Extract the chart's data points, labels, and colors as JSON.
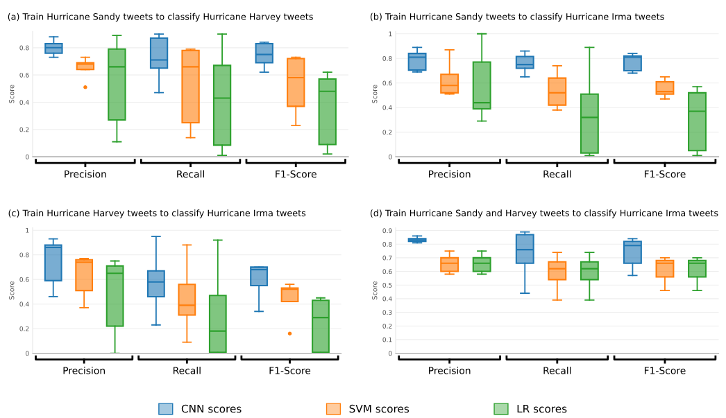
{
  "chart_data": [
    {
      "type": "box",
      "title": "(a) Train Hurricane Sandy tweets to classify Hurricane Harvey tweets",
      "ylabel": "Score",
      "categories": [
        "Precision",
        "Recall",
        "F1-Score"
      ],
      "ylim": [
        0,
        0.92
      ],
      "yticks": [
        0,
        0.2,
        0.4,
        0.6,
        0.8
      ],
      "grid": "y",
      "legend": "bottom",
      "series": [
        {
          "name": "CNN scores",
          "color": "#1f77b4",
          "boxes": [
            {
              "low": 0.73,
              "q1": 0.76,
              "median": 0.8,
              "q3": 0.83,
              "high": 0.88
            },
            {
              "low": 0.47,
              "q1": 0.65,
              "median": 0.71,
              "q3": 0.87,
              "high": 0.9
            },
            {
              "low": 0.62,
              "q1": 0.69,
              "median": 0.75,
              "q3": 0.83,
              "high": 0.84
            }
          ]
        },
        {
          "name": "SVM scores",
          "color": "#ff7f0e",
          "boxes": [
            {
              "low": 0.64,
              "q1": 0.64,
              "median": 0.68,
              "q3": 0.69,
              "high": 0.73,
              "outliers": [
                0.51
              ]
            },
            {
              "low": 0.14,
              "q1": 0.25,
              "median": 0.66,
              "q3": 0.78,
              "high": 0.79
            },
            {
              "low": 0.23,
              "q1": 0.37,
              "median": 0.58,
              "q3": 0.72,
              "high": 0.73
            }
          ]
        },
        {
          "name": "LR scores",
          "color": "#2ca02c",
          "boxes": [
            {
              "low": 0.11,
              "q1": 0.27,
              "median": 0.66,
              "q3": 0.79,
              "high": 0.89
            },
            {
              "low": 0.01,
              "q1": 0.085,
              "median": 0.43,
              "q3": 0.67,
              "high": 0.9
            },
            {
              "low": 0.02,
              "q1": 0.09,
              "median": 0.48,
              "q3": 0.57,
              "high": 0.62
            }
          ]
        }
      ]
    },
    {
      "type": "box",
      "title": "(b) Train Hurricane Sandy tweets to classify Hurricane Irma tweets",
      "ylabel": "Score",
      "categories": [
        "Precision",
        "Recall",
        "F1-Score"
      ],
      "ylim": [
        0,
        1.02
      ],
      "yticks": [
        0,
        0.2,
        0.4,
        0.6,
        0.8,
        1
      ],
      "grid": "y",
      "series": [
        {
          "color": "#1f77b4",
          "boxes": [
            {
              "low": 0.69,
              "q1": 0.705,
              "median": 0.81,
              "q3": 0.84,
              "high": 0.89
            },
            {
              "low": 0.65,
              "q1": 0.72,
              "median": 0.75,
              "q3": 0.815,
              "high": 0.86
            },
            {
              "low": 0.68,
              "q1": 0.7,
              "median": 0.81,
              "q3": 0.82,
              "high": 0.84
            }
          ]
        },
        {
          "color": "#ff7f0e",
          "boxes": [
            {
              "low": 0.51,
              "q1": 0.52,
              "median": 0.58,
              "q3": 0.67,
              "high": 0.87
            },
            {
              "low": 0.38,
              "q1": 0.42,
              "median": 0.52,
              "q3": 0.64,
              "high": 0.74
            },
            {
              "low": 0.47,
              "q1": 0.51,
              "median": 0.53,
              "q3": 0.61,
              "high": 0.65
            }
          ]
        },
        {
          "color": "#2ca02c",
          "boxes": [
            {
              "low": 0.29,
              "q1": 0.39,
              "median": 0.44,
              "q3": 0.77,
              "high": 1.0
            },
            {
              "low": 0.01,
              "q1": 0.03,
              "median": 0.32,
              "q3": 0.51,
              "high": 0.89
            },
            {
              "low": 0.01,
              "q1": 0.05,
              "median": 0.37,
              "q3": 0.52,
              "high": 0.57
            }
          ]
        }
      ]
    },
    {
      "type": "box",
      "title": "(c) Train Hurricane Harvey tweets to classify Hurricane Irma tweets",
      "ylabel": "Score",
      "categories": [
        "Precision",
        "Recall",
        "F1-Score"
      ],
      "ylim": [
        0,
        1.02
      ],
      "yticks": [
        0,
        0.2,
        0.4,
        0.6,
        0.8,
        1
      ],
      "grid": "y",
      "series": [
        {
          "color": "#1f77b4",
          "boxes": [
            {
              "low": 0.46,
              "q1": 0.59,
              "median": 0.86,
              "q3": 0.88,
              "high": 0.93
            },
            {
              "low": 0.23,
              "q1": 0.46,
              "median": 0.58,
              "q3": 0.67,
              "high": 0.95
            },
            {
              "low": 0.34,
              "q1": 0.55,
              "median": 0.68,
              "q3": 0.7,
              "high": 0.7
            }
          ]
        },
        {
          "color": "#ff7f0e",
          "boxes": [
            {
              "low": 0.37,
              "q1": 0.51,
              "median": 0.74,
              "q3": 0.76,
              "high": 0.77
            },
            {
              "low": 0.09,
              "q1": 0.31,
              "median": 0.39,
              "q3": 0.56,
              "high": 0.88
            },
            {
              "low": 0.42,
              "q1": 0.42,
              "median": 0.52,
              "q3": 0.53,
              "high": 0.56,
              "outliers": [
                0.16
              ]
            }
          ]
        },
        {
          "color": "#2ca02c",
          "boxes": [
            {
              "low": 0,
              "q1": 0.22,
              "median": 0.65,
              "q3": 0.71,
              "high": 0.75
            },
            {
              "low": 0,
              "q1": 0.007,
              "median": 0.18,
              "q3": 0.47,
              "high": 0.92
            },
            {
              "low": 0,
              "q1": 0.007,
              "median": 0.29,
              "q3": 0.43,
              "high": 0.45
            }
          ]
        }
      ]
    },
    {
      "type": "box",
      "title": "(d) Train Hurricane Sandy and Harvey tweets to classify Hurricane Irma tweets",
      "ylabel": "Score",
      "categories": [
        "Precision",
        "Recall",
        "F1-Score"
      ],
      "ylim": [
        0,
        0.92
      ],
      "yticks": [
        0,
        0.1,
        0.2,
        0.3,
        0.4,
        0.5,
        0.6,
        0.7,
        0.8,
        0.9
      ],
      "grid": "y",
      "series": [
        {
          "color": "#1f77b4",
          "boxes": [
            {
              "low": 0.81,
              "q1": 0.82,
              "median": 0.83,
              "q3": 0.84,
              "high": 0.86
            },
            {
              "low": 0.44,
              "q1": 0.66,
              "median": 0.76,
              "q3": 0.87,
              "high": 0.89
            },
            {
              "low": 0.57,
              "q1": 0.66,
              "median": 0.79,
              "q3": 0.82,
              "high": 0.84
            }
          ]
        },
        {
          "color": "#ff7f0e",
          "boxes": [
            {
              "low": 0.58,
              "q1": 0.6,
              "median": 0.66,
              "q3": 0.7,
              "high": 0.75
            },
            {
              "low": 0.39,
              "q1": 0.54,
              "median": 0.62,
              "q3": 0.67,
              "high": 0.74
            },
            {
              "low": 0.46,
              "q1": 0.56,
              "median": 0.66,
              "q3": 0.68,
              "high": 0.7
            }
          ]
        },
        {
          "color": "#2ca02c",
          "boxes": [
            {
              "low": 0.58,
              "q1": 0.6,
              "median": 0.66,
              "q3": 0.7,
              "high": 0.75
            },
            {
              "low": 0.39,
              "q1": 0.54,
              "median": 0.62,
              "q3": 0.67,
              "high": 0.74
            },
            {
              "low": 0.46,
              "q1": 0.56,
              "median": 0.66,
              "q3": 0.68,
              "high": 0.7
            }
          ]
        }
      ]
    }
  ]
}
